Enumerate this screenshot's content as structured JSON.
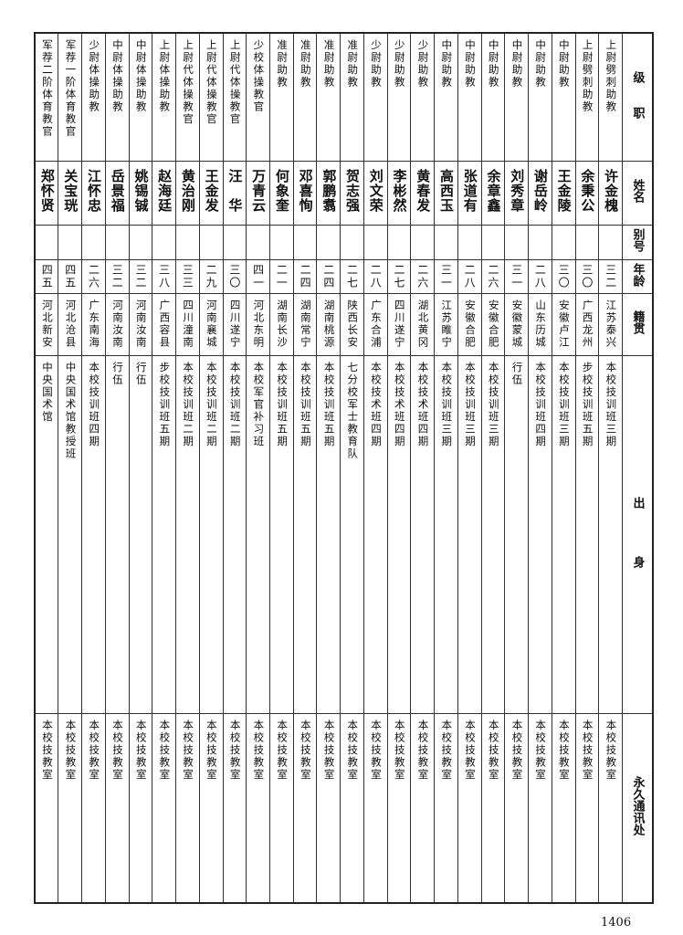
{
  "headers": {
    "rank": "级　　职",
    "name": "姓名",
    "alias": "别号",
    "age": "年龄",
    "origin": "籍贯",
    "edu": "出　　　　身",
    "addr": "永久通讯处"
  },
  "records": [
    {
      "rank": "上尉劈刺助教",
      "name": "许金槐",
      "alias": "",
      "age": "三二",
      "origin": "江苏泰兴",
      "edu": "本校技训班三期",
      "addr": "本校技教室"
    },
    {
      "rank": "上尉劈刺助教",
      "name": "余秉公",
      "alias": "",
      "age": "三〇",
      "origin": "广西龙州",
      "edu": "步校技训班五期",
      "addr": "本校技教室"
    },
    {
      "rank": "中尉助教",
      "name": "王金陵",
      "alias": "",
      "age": "三〇",
      "origin": "安徽卢江",
      "edu": "本校技训班三期",
      "addr": "本校技教室"
    },
    {
      "rank": "中尉助教",
      "name": "谢岳岭",
      "alias": "",
      "age": "二八",
      "origin": "山东历城",
      "edu": "本校技训班四期",
      "addr": "本校技教室"
    },
    {
      "rank": "中尉助教",
      "name": "刘秀章",
      "alias": "",
      "age": "三一",
      "origin": "安徽蒙城",
      "edu": "行伍",
      "addr": "本校技教室"
    },
    {
      "rank": "中尉助教",
      "name": "余章鑫",
      "alias": "",
      "age": "二六",
      "origin": "安徽合肥",
      "edu": "本校技训班三期",
      "addr": "本校技教室"
    },
    {
      "rank": "中尉助教",
      "name": "张道有",
      "alias": "",
      "age": "二八",
      "origin": "安徽合肥",
      "edu": "本校技训班三期",
      "addr": "本校技教室"
    },
    {
      "rank": "中尉助教",
      "name": "高西玉",
      "alias": "",
      "age": "三一",
      "origin": "江苏睢宁",
      "edu": "本校技训班三期",
      "addr": "本校技教室"
    },
    {
      "rank": "少尉助教",
      "name": "黄春发",
      "alias": "",
      "age": "二六",
      "origin": "湖北黄冈",
      "edu": "本校技术班四期",
      "addr": "本校技教室"
    },
    {
      "rank": "少尉助教",
      "name": "李彬然",
      "alias": "",
      "age": "二七",
      "origin": "四川遂宁",
      "edu": "本校技术班四期",
      "addr": "本校技教室"
    },
    {
      "rank": "少尉助教",
      "name": "刘文荣",
      "alias": "",
      "age": "二八",
      "origin": "广东合浦",
      "edu": "本校技术班四期",
      "addr": "本校技教室"
    },
    {
      "rank": "准尉助教",
      "name": "贺志强",
      "alias": "",
      "age": "二七",
      "origin": "陕西长安",
      "edu": "七分校军士教育队",
      "addr": "本校技教室"
    },
    {
      "rank": "准尉助教",
      "name": "郭鹏翥",
      "alias": "",
      "age": "二四",
      "origin": "湖南桃源",
      "edu": "本校技训班五期",
      "addr": "本校技教室"
    },
    {
      "rank": "准尉助教",
      "name": "邓喜恂",
      "alias": "",
      "age": "二四",
      "origin": "湖南常宁",
      "edu": "本校技训班五期",
      "addr": "本校技教室"
    },
    {
      "rank": "准尉助教",
      "name": "何象奎",
      "alias": "",
      "age": "二一",
      "origin": "湖南长沙",
      "edu": "本校技训班五期",
      "addr": "本校技教室"
    },
    {
      "rank": "少校体操教官",
      "name": "万青云",
      "alias": "",
      "age": "四一",
      "origin": "河北东明",
      "edu": "本校军官补习班",
      "addr": "本校技教室"
    },
    {
      "rank": "上尉代体操教官",
      "name": "汪　华",
      "alias": "",
      "age": "三〇",
      "origin": "四川遂宁",
      "edu": "本校技训班二期",
      "addr": "本校技教室"
    },
    {
      "rank": "上尉代体操教官",
      "name": "王金发",
      "alias": "",
      "age": "二九",
      "origin": "河南襄城",
      "edu": "本校技训班二期",
      "addr": "本校技教室"
    },
    {
      "rank": "上尉代体操教官",
      "name": "黄治刚",
      "alias": "",
      "age": "三三",
      "origin": "四川潼南",
      "edu": "本校技训班二期",
      "addr": "本校技教室"
    },
    {
      "rank": "上尉体操助教",
      "name": "赵海廷",
      "alias": "",
      "age": "三八",
      "origin": "广西容县",
      "edu": "步校技训班五期",
      "addr": "本校技教室"
    },
    {
      "rank": "中尉体操助教",
      "name": "姚锡铖",
      "alias": "",
      "age": "三二",
      "origin": "河南汝南",
      "edu": "行伍",
      "addr": "本校技教室"
    },
    {
      "rank": "中尉体操助教",
      "name": "岳景福",
      "alias": "",
      "age": "三二",
      "origin": "河南汝南",
      "edu": "行伍",
      "addr": "本校技教室"
    },
    {
      "rank": "少尉体操助教",
      "name": "江怀忠",
      "alias": "",
      "age": "二六",
      "origin": "广东南海",
      "edu": "本校技训班四期",
      "addr": "本校技教室"
    },
    {
      "rank": "军荐一阶体育教官",
      "name": "关宝珖",
      "alias": "",
      "age": "四五",
      "origin": "河北沧县",
      "edu": "中央国术馆教授班",
      "addr": "本校技教室"
    },
    {
      "rank": "军荐二阶体育教官",
      "name": "郑怀贤",
      "alias": "",
      "age": "四五",
      "origin": "河北新安",
      "edu": "中央国术馆",
      "addr": "本校技教室"
    }
  ],
  "page_number": "1406"
}
